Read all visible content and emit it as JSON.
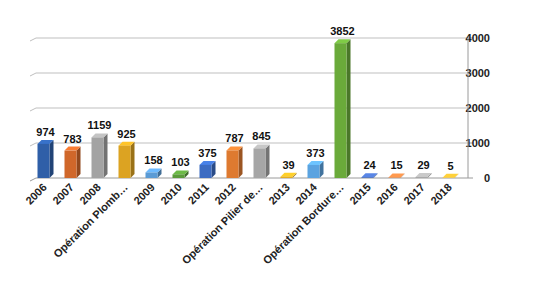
{
  "chart_data": {
    "type": "bar",
    "categories": [
      "2006",
      "2007",
      "2008",
      "Opération Plomb…",
      "2009",
      "2010",
      "2011",
      "2012",
      "Opération Pilier de…",
      "2013",
      "2014",
      "Opération Bordure…",
      "2015",
      "2016",
      "2017",
      "2018"
    ],
    "values": [
      974,
      783,
      1159,
      925,
      158,
      103,
      375,
      787,
      845,
      39,
      373,
      3852,
      24,
      15,
      29,
      5
    ],
    "colors": [
      "#2f5fa8",
      "#d0672a",
      "#a3a3a3",
      "#dca322",
      "#5b9bd5",
      "#5a9b3a",
      "#3d6cc2",
      "#de7a30",
      "#a6a6a6",
      "#e3ad22",
      "#5ba3e0",
      "#6aaa3a",
      "#4a70c0",
      "#df8042",
      "#a8a8a8",
      "#dfae30"
    ],
    "ylim": [
      0,
      4000
    ],
    "yticks": [
      0,
      1000,
      2000,
      3000,
      4000
    ],
    "grid": true,
    "data_labels": true
  }
}
